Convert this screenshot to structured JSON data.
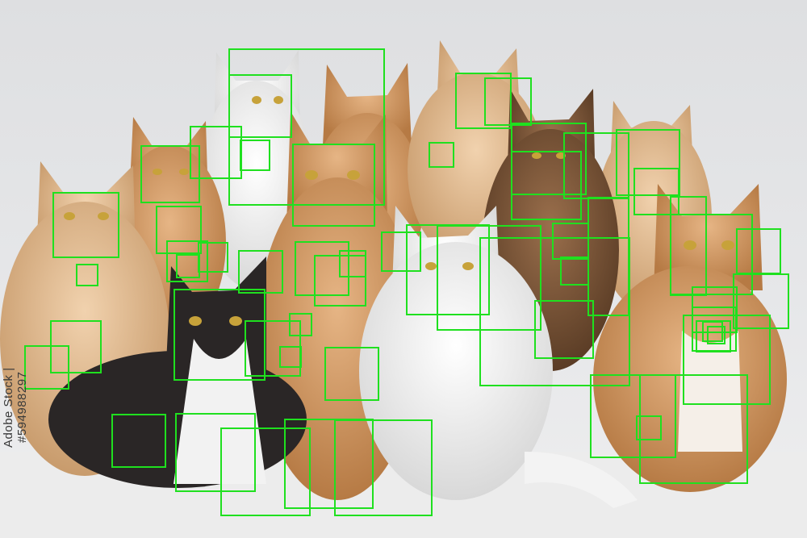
{
  "image": {
    "side_text": "Adobe Stock | #594988297",
    "box_color": "#1fe01f",
    "subject": "group of cats"
  }
}
